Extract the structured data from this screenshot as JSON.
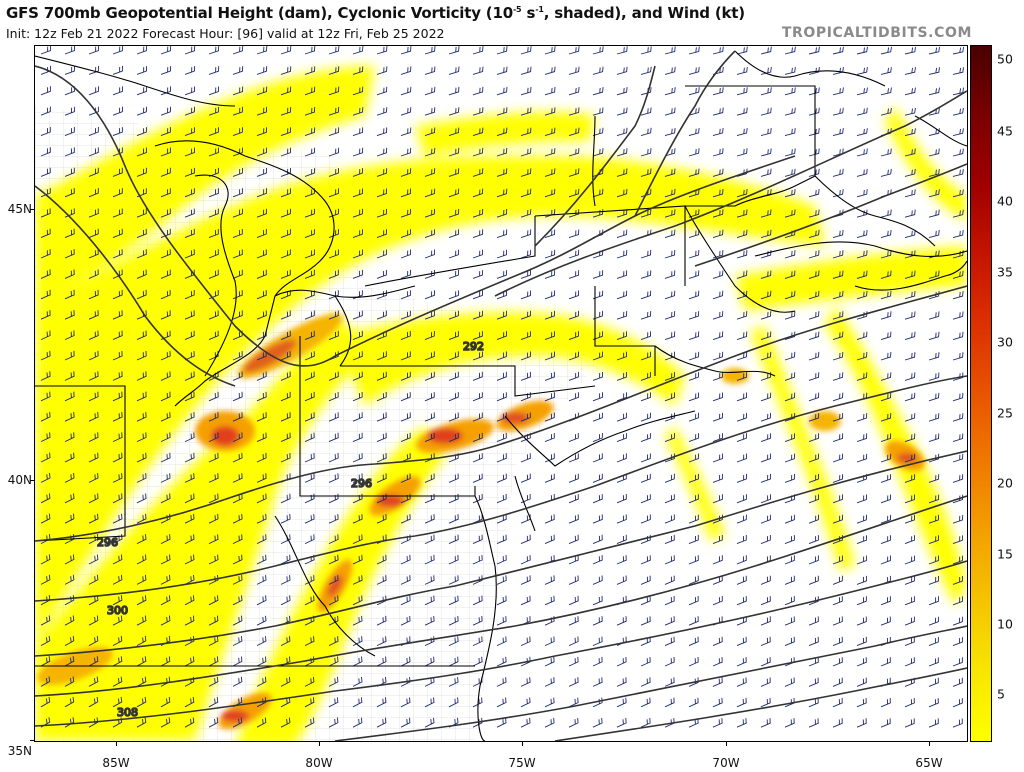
{
  "header": {
    "title_part1": "GFS 700mb Geopotential Height (dam), Cyclonic Vorticity (10",
    "title_sup": "-5",
    "title_part2": " s",
    "title_sup2": "-1",
    "title_part3": ", shaded), and Wind (kt)",
    "subtitle": "Init: 12z Feb 21 2022   Forecast Hour: [96]   valid at 12z Fri, Feb 25 2022",
    "brand": "TROPICALTIDBITS.COM"
  },
  "map": {
    "lat_labels": [
      "45N",
      "40N",
      "35N"
    ],
    "lon_labels": [
      "85W",
      "80W",
      "75W",
      "70W",
      "65W"
    ],
    "contour_labels": [
      "292",
      "296",
      "296",
      "300",
      "308"
    ]
  },
  "colorbar": {
    "labels": [
      "50",
      "45",
      "40",
      "35",
      "30",
      "25",
      "20",
      "15",
      "10",
      "5"
    ],
    "colors": [
      "#ffff00",
      "#f7e600",
      "#f5c400",
      "#f3a000",
      "#ef7a00",
      "#e85400",
      "#dc3000",
      "#c41400",
      "#a00000",
      "#7a0000",
      "#4a0000"
    ]
  },
  "colors": {
    "vort_low": "#ffff00",
    "vort_mid": "#f5b400",
    "vort_high": "#e0401a",
    "contour": "#333333",
    "barb": "#1e2a6e",
    "boundary": "#000000",
    "county": "#b8b8b8"
  }
}
